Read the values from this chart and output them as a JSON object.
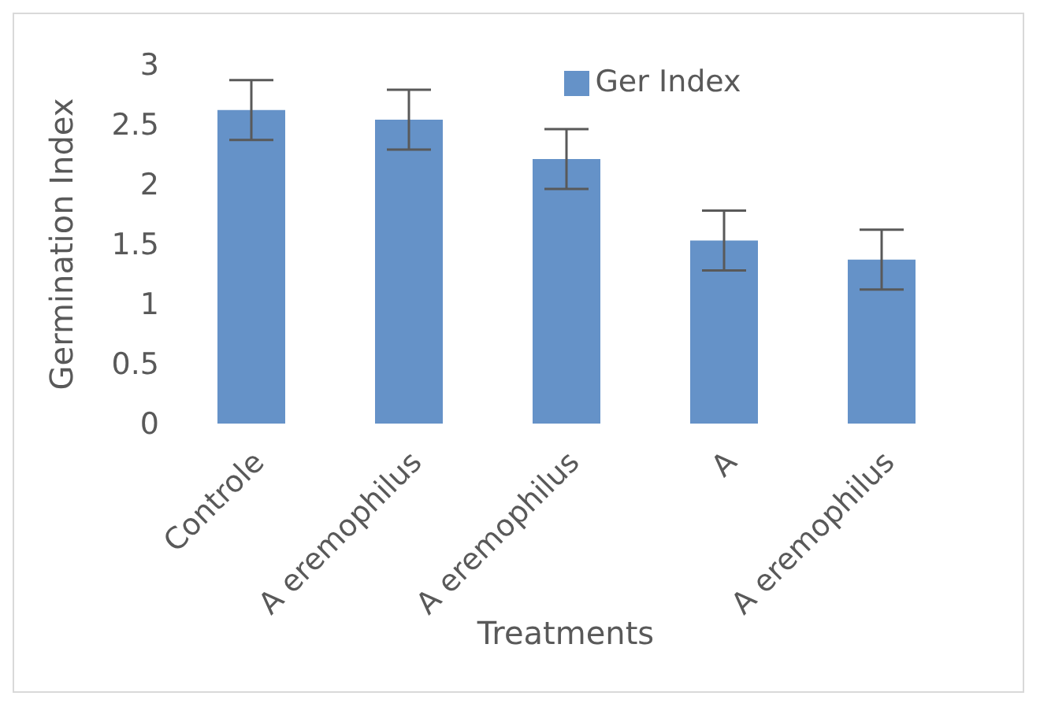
{
  "chart_data": {
    "type": "bar",
    "xlabel": "Treatments",
    "ylabel": "Germination Index",
    "categories": [
      "Controle",
      "A eremophilus",
      "A eremophilus",
      "A",
      "A eremophilus"
    ],
    "series": [
      {
        "name": "Ger Index",
        "color": "#6592c8",
        "values": [
          2.62,
          2.54,
          2.21,
          1.53,
          1.37
        ],
        "errors": [
          0.25,
          0.25,
          0.25,
          0.25,
          0.25
        ]
      }
    ],
    "ylim": [
      0,
      3
    ],
    "yticks": [
      0,
      0.5,
      1,
      1.5,
      2,
      2.5,
      3
    ],
    "grid": false,
    "legend": "top"
  }
}
